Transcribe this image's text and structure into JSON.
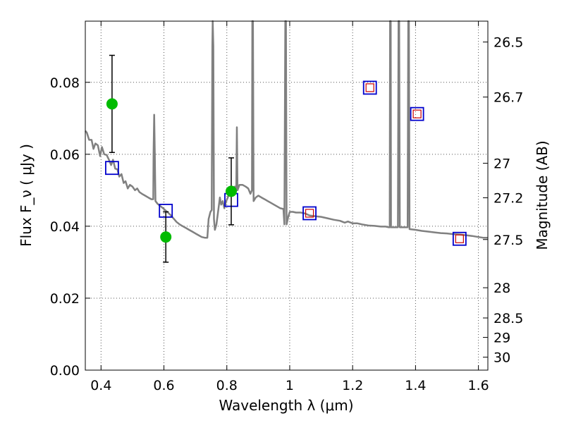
{
  "chart_data": {
    "type": "scatter",
    "xlabel": "Wavelength  λ (μm)",
    "ylabel": "Flux  F_ν  ( μJy )",
    "y2label": "Magnitude (AB)",
    "xlim": [
      0.35,
      1.63
    ],
    "ylim": [
      0.0,
      0.097
    ],
    "grid": true,
    "x_ticks": [
      0.4,
      0.6,
      0.8,
      1.0,
      1.2,
      1.4,
      1.6
    ],
    "x_tick_labels": [
      "0.4",
      "0.6",
      "0.8",
      "1",
      "1.2",
      "1.4",
      "1.6"
    ],
    "y_ticks": [
      0.0,
      0.02,
      0.04,
      0.06,
      0.08
    ],
    "y_tick_labels": [
      "0.00",
      "0.02",
      "0.04",
      "0.06",
      "0.08"
    ],
    "y2_ticks": [
      {
        "label": "26.5",
        "flux": 0.0912
      },
      {
        "label": "26.7",
        "flux": 0.0759
      },
      {
        "label": "27",
        "flux": 0.0575
      },
      {
        "label": "27.2",
        "flux": 0.0479
      },
      {
        "label": "27.5",
        "flux": 0.0363
      },
      {
        "label": "28",
        "flux": 0.0229
      },
      {
        "label": "28.5",
        "flux": 0.0145
      },
      {
        "label": "29",
        "flux": 0.0091
      },
      {
        "label": "30",
        "flux": 0.0036
      }
    ],
    "colors": {
      "model_line": "#808080",
      "observed": "#00bb00",
      "model_square": "#0000cc",
      "model_square_inner": "#cc0000",
      "grid": "#555555"
    },
    "observed_points": [
      {
        "x": 0.435,
        "y": 0.074,
        "yerr_low": 0.0135,
        "yerr_high": 0.0135
      },
      {
        "x": 0.606,
        "y": 0.037,
        "yerr_low": 0.007,
        "yerr_high": 0.007
      },
      {
        "x": 0.814,
        "y": 0.0497,
        "yerr_low": 0.0093,
        "yerr_high": 0.0093
      }
    ],
    "model_photometry": [
      {
        "x": 0.435,
        "y": 0.0562,
        "inner": false
      },
      {
        "x": 0.606,
        "y": 0.0443,
        "inner": false
      },
      {
        "x": 0.814,
        "y": 0.0473,
        "inner": false
      },
      {
        "x": 1.063,
        "y": 0.0436,
        "inner": true
      },
      {
        "x": 1.255,
        "y": 0.0785,
        "inner": true
      },
      {
        "x": 1.405,
        "y": 0.0712,
        "inner": true
      },
      {
        "x": 1.54,
        "y": 0.0365,
        "inner": true
      }
    ],
    "model_spectrum": [
      [
        0.35,
        0.0665
      ],
      [
        0.355,
        0.066
      ],
      [
        0.362,
        0.064
      ],
      [
        0.37,
        0.064
      ],
      [
        0.376,
        0.0615
      ],
      [
        0.382,
        0.063
      ],
      [
        0.39,
        0.0625
      ],
      [
        0.397,
        0.0595
      ],
      [
        0.403,
        0.062
      ],
      [
        0.41,
        0.06
      ],
      [
        0.418,
        0.0598
      ],
      [
        0.425,
        0.0585
      ],
      [
        0.432,
        0.057
      ],
      [
        0.438,
        0.0585
      ],
      [
        0.445,
        0.056
      ],
      [
        0.452,
        0.0558
      ],
      [
        0.458,
        0.0538
      ],
      [
        0.465,
        0.0545
      ],
      [
        0.472,
        0.052
      ],
      [
        0.478,
        0.0525
      ],
      [
        0.485,
        0.0505
      ],
      [
        0.492,
        0.0515
      ],
      [
        0.5,
        0.051
      ],
      [
        0.508,
        0.05
      ],
      [
        0.515,
        0.0505
      ],
      [
        0.522,
        0.0495
      ],
      [
        0.53,
        0.049
      ],
      [
        0.54,
        0.0485
      ],
      [
        0.55,
        0.048
      ],
      [
        0.56,
        0.0475
      ],
      [
        0.566,
        0.0475
      ],
      [
        0.567,
        0.06
      ],
      [
        0.569,
        0.071
      ],
      [
        0.571,
        0.06
      ],
      [
        0.573,
        0.047
      ],
      [
        0.58,
        0.0462
      ],
      [
        0.59,
        0.0455
      ],
      [
        0.6,
        0.0448
      ],
      [
        0.61,
        0.044
      ],
      [
        0.62,
        0.0432
      ],
      [
        0.63,
        0.0422
      ],
      [
        0.64,
        0.0412
      ],
      [
        0.65,
        0.0405
      ],
      [
        0.66,
        0.04
      ],
      [
        0.67,
        0.0395
      ],
      [
        0.68,
        0.039
      ],
      [
        0.69,
        0.0385
      ],
      [
        0.7,
        0.038
      ],
      [
        0.71,
        0.0375
      ],
      [
        0.72,
        0.037
      ],
      [
        0.73,
        0.0368
      ],
      [
        0.738,
        0.0368
      ],
      [
        0.742,
        0.042
      ],
      [
        0.748,
        0.044
      ],
      [
        0.752,
        0.0445
      ],
      [
        0.754,
        0.09
      ],
      [
        0.755,
        0.097
      ],
      [
        0.757,
        0.09
      ],
      [
        0.759,
        0.042
      ],
      [
        0.762,
        0.039
      ],
      [
        0.767,
        0.0405
      ],
      [
        0.772,
        0.044
      ],
      [
        0.778,
        0.048
      ],
      [
        0.782,
        0.046
      ],
      [
        0.787,
        0.047
      ],
      [
        0.792,
        0.045
      ],
      [
        0.798,
        0.047
      ],
      [
        0.803,
        0.048
      ],
      [
        0.81,
        0.0495
      ],
      [
        0.818,
        0.0505
      ],
      [
        0.825,
        0.051
      ],
      [
        0.83,
        0.05
      ],
      [
        0.832,
        0.0675
      ],
      [
        0.834,
        0.05
      ],
      [
        0.84,
        0.0515
      ],
      [
        0.85,
        0.0515
      ],
      [
        0.86,
        0.051
      ],
      [
        0.868,
        0.0505
      ],
      [
        0.875,
        0.049
      ],
      [
        0.88,
        0.05
      ],
      [
        0.881,
        0.097
      ],
      [
        0.883,
        0.097
      ],
      [
        0.885,
        0.047
      ],
      [
        0.892,
        0.048
      ],
      [
        0.9,
        0.0485
      ],
      [
        0.91,
        0.048
      ],
      [
        0.92,
        0.0475
      ],
      [
        0.93,
        0.047
      ],
      [
        0.94,
        0.0465
      ],
      [
        0.95,
        0.046
      ],
      [
        0.96,
        0.0455
      ],
      [
        0.97,
        0.045
      ],
      [
        0.98,
        0.0448
      ],
      [
        0.983,
        0.0405
      ],
      [
        0.986,
        0.097
      ],
      [
        0.988,
        0.097
      ],
      [
        0.99,
        0.0405
      ],
      [
        0.995,
        0.0425
      ],
      [
        1.0,
        0.044
      ],
      [
        1.01,
        0.044
      ],
      [
        1.02,
        0.0438
      ],
      [
        1.035,
        0.0438
      ],
      [
        1.05,
        0.0435
      ],
      [
        1.063,
        0.043
      ],
      [
        1.08,
        0.0428
      ],
      [
        1.1,
        0.0426
      ],
      [
        1.12,
        0.0422
      ],
      [
        1.14,
        0.0418
      ],
      [
        1.16,
        0.0415
      ],
      [
        1.175,
        0.041
      ],
      [
        1.185,
        0.0413
      ],
      [
        1.2,
        0.0408
      ],
      [
        1.215,
        0.0408
      ],
      [
        1.23,
        0.0405
      ],
      [
        1.25,
        0.0402
      ],
      [
        1.27,
        0.0401
      ],
      [
        1.29,
        0.0399
      ],
      [
        1.305,
        0.0399
      ],
      [
        1.315,
        0.0397
      ],
      [
        1.318,
        0.0397
      ],
      [
        1.319,
        0.097
      ],
      [
        1.321,
        0.097
      ],
      [
        1.322,
        0.0397
      ],
      [
        1.335,
        0.0397
      ],
      [
        1.344,
        0.0397
      ],
      [
        1.346,
        0.097
      ],
      [
        1.348,
        0.097
      ],
      [
        1.35,
        0.0397
      ],
      [
        1.365,
        0.0397
      ],
      [
        1.375,
        0.0397
      ],
      [
        1.377,
        0.097
      ],
      [
        1.379,
        0.097
      ],
      [
        1.381,
        0.0392
      ],
      [
        1.4,
        0.039
      ],
      [
        1.42,
        0.0387
      ],
      [
        1.44,
        0.0385
      ],
      [
        1.46,
        0.0383
      ],
      [
        1.48,
        0.0381
      ],
      [
        1.5,
        0.038
      ],
      [
        1.52,
        0.0378
      ],
      [
        1.54,
        0.0377
      ],
      [
        1.56,
        0.0375
      ],
      [
        1.58,
        0.0373
      ],
      [
        1.6,
        0.037
      ],
      [
        1.615,
        0.0368
      ],
      [
        1.63,
        0.0368
      ]
    ]
  }
}
